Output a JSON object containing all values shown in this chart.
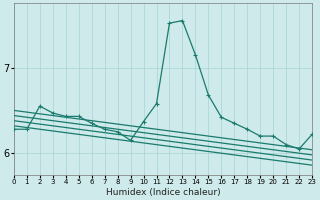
{
  "xlabel": "Humidex (Indice chaleur)",
  "bg_color": "#ceeaea",
  "grid_color": "#a8d4d4",
  "line_color": "#1a7a6e",
  "xlim": [
    0,
    23
  ],
  "ylim": [
    5.75,
    7.75
  ],
  "yticks": [
    6,
    7
  ],
  "xticks": [
    0,
    1,
    2,
    3,
    4,
    5,
    6,
    7,
    8,
    9,
    10,
    11,
    12,
    13,
    14,
    15,
    16,
    17,
    18,
    19,
    20,
    21,
    22,
    23
  ],
  "main_series": [
    6.28,
    6.28,
    6.55,
    6.47,
    6.43,
    6.43,
    6.35,
    6.28,
    6.25,
    6.15,
    6.37,
    6.58,
    7.52,
    7.55,
    7.15,
    6.68,
    6.42,
    6.35,
    6.28,
    6.2,
    6.2,
    6.1,
    6.05,
    6.22
  ],
  "linear_series": [
    [
      6.32,
      6.3,
      6.28,
      6.26,
      6.24,
      6.22,
      6.2,
      6.18,
      6.16,
      6.14,
      6.12,
      6.1,
      6.08,
      6.06,
      6.04,
      6.02,
      6.0,
      5.98,
      5.96,
      5.94,
      5.92,
      5.9,
      5.88,
      5.86
    ],
    [
      6.38,
      6.36,
      6.34,
      6.32,
      6.3,
      6.28,
      6.26,
      6.24,
      6.22,
      6.2,
      6.18,
      6.16,
      6.14,
      6.12,
      6.1,
      6.08,
      6.06,
      6.04,
      6.02,
      6.0,
      5.98,
      5.96,
      5.94,
      5.92
    ],
    [
      6.44,
      6.42,
      6.4,
      6.38,
      6.36,
      6.34,
      6.32,
      6.3,
      6.28,
      6.26,
      6.24,
      6.22,
      6.2,
      6.18,
      6.16,
      6.14,
      6.12,
      6.1,
      6.08,
      6.06,
      6.04,
      6.02,
      6.0,
      5.98
    ],
    [
      6.5,
      6.48,
      6.46,
      6.44,
      6.42,
      6.4,
      6.38,
      6.36,
      6.34,
      6.32,
      6.3,
      6.28,
      6.26,
      6.24,
      6.22,
      6.2,
      6.18,
      6.16,
      6.14,
      6.12,
      6.1,
      6.08,
      6.06,
      6.04
    ]
  ],
  "marker": "+",
  "marker_size": 3.5,
  "main_lw": 0.9,
  "linear_lw": 0.9
}
